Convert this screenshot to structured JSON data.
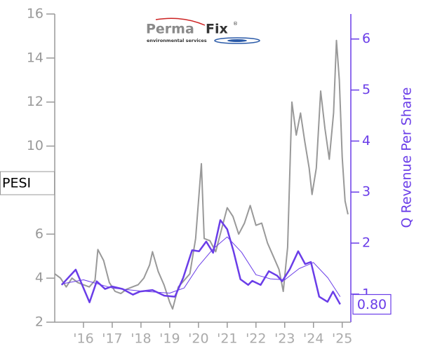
{
  "chart_data": {
    "type": "line",
    "label": "PESI",
    "logo": {
      "brand_part1": "Perma",
      "brand_part2": "Fix",
      "registered": "®",
      "tagline": "environmental services"
    },
    "y2label": "Q Revenue Per Share",
    "xlim": [
      2015.0,
      2025.3
    ],
    "xticks": [
      {
        "value": 2016,
        "label": "'16"
      },
      {
        "value": 2017,
        "label": "'17"
      },
      {
        "value": 2018,
        "label": "'18"
      },
      {
        "value": 2019,
        "label": "'19"
      },
      {
        "value": 2020,
        "label": "'20"
      },
      {
        "value": 2021,
        "label": "'21"
      },
      {
        "value": 2022,
        "label": "'22"
      },
      {
        "value": 2023,
        "label": "'23"
      },
      {
        "value": 2024,
        "label": "'24"
      },
      {
        "value": 2025,
        "label": "'25"
      }
    ],
    "ylim": [
      2,
      16
    ],
    "yticks": [
      2,
      4,
      6,
      8,
      10,
      12,
      14,
      16
    ],
    "y2lim": [
      0.45,
      6.49
    ],
    "y2ticks": [
      1,
      2,
      3,
      4,
      5,
      6
    ],
    "series": [
      {
        "color": "#999999",
        "axis": "y",
        "width": 2,
        "x": [
          2015.0,
          2015.2,
          2015.4,
          2015.6,
          2015.8,
          2016.0,
          2016.2,
          2016.4,
          2016.5,
          2016.7,
          2016.9,
          2017.1,
          2017.3,
          2017.5,
          2017.7,
          2017.9,
          2018.1,
          2018.3,
          2018.4,
          2018.6,
          2018.8,
          2019.0,
          2019.1,
          2019.3,
          2019.5,
          2019.7,
          2019.9,
          2020.0,
          2020.1,
          2020.2,
          2020.4,
          2020.6,
          2020.8,
          2021.0,
          2021.2,
          2021.4,
          2021.6,
          2021.8,
          2022.0,
          2022.2,
          2022.4,
          2022.6,
          2022.8,
          2022.95,
          2023.1,
          2023.25,
          2023.4,
          2023.55,
          2023.7,
          2023.85,
          2023.95,
          2024.1,
          2024.25,
          2024.4,
          2024.55,
          2024.7,
          2024.8,
          2024.9,
          2025.0,
          2025.1,
          2025.2
        ],
        "values": [
          4.2,
          4.0,
          3.6,
          4.0,
          3.8,
          3.7,
          3.6,
          3.9,
          5.3,
          4.8,
          3.8,
          3.4,
          3.3,
          3.5,
          3.6,
          3.7,
          4.0,
          4.6,
          5.2,
          4.3,
          3.7,
          2.9,
          2.6,
          3.6,
          3.9,
          4.2,
          5.8,
          7.5,
          9.2,
          5.8,
          5.7,
          5.2,
          6.2,
          7.2,
          6.8,
          6.0,
          6.5,
          7.3,
          6.4,
          6.5,
          5.6,
          5.0,
          4.4,
          3.4,
          5.4,
          12.0,
          10.5,
          11.5,
          10.2,
          9.0,
          7.8,
          9.0,
          12.5,
          10.8,
          9.4,
          11.5,
          14.8,
          13.0,
          9.5,
          7.5,
          6.9
        ]
      },
      {
        "color": "#6a3de8",
        "axis": "y2",
        "width": 2.5,
        "x": [
          2015.24,
          2015.73,
          2016.21,
          2016.46,
          2016.75,
          2016.99,
          2017.36,
          2017.72,
          2017.96,
          2018.4,
          2018.81,
          2019.18,
          2019.47,
          2019.78,
          2020.02,
          2020.27,
          2020.51,
          2020.76,
          2021.0,
          2021.22,
          2021.46,
          2021.73,
          2021.87,
          2022.16,
          2022.45,
          2022.74,
          2022.91,
          2023.18,
          2023.47,
          2023.71,
          2023.91,
          2024.2,
          2024.49,
          2024.68,
          2024.93
        ],
        "values": [
          1.18,
          1.48,
          0.84,
          1.25,
          1.1,
          1.15,
          1.1,
          0.99,
          1.05,
          1.08,
          0.97,
          0.95,
          1.32,
          1.86,
          1.84,
          2.03,
          1.81,
          2.45,
          2.27,
          1.84,
          1.29,
          1.18,
          1.26,
          1.18,
          1.45,
          1.36,
          1.25,
          1.49,
          1.84,
          1.59,
          1.63,
          0.95,
          0.85,
          1.05,
          0.8
        ],
        "value_labels": [
          null,
          null,
          null,
          null,
          null,
          null,
          null,
          null,
          null,
          null,
          null,
          null,
          null,
          null,
          null,
          null,
          null,
          null,
          null,
          null,
          null,
          null,
          null,
          null,
          null,
          null,
          null,
          null,
          null,
          null,
          null,
          null,
          null,
          null,
          "0.80"
        ]
      },
      {
        "color": "#6a3de8",
        "axis": "y2",
        "width": 1,
        "x": [
          2015.24,
          2016.0,
          2017.0,
          2018.0,
          2019.0,
          2019.5,
          2020.0,
          2020.5,
          2021.0,
          2021.5,
          2022.0,
          2022.5,
          2023.0,
          2023.5,
          2024.0,
          2024.5,
          2024.93
        ],
        "values": [
          1.2,
          1.28,
          1.12,
          1.06,
          1.02,
          1.12,
          1.55,
          1.88,
          2.12,
          1.82,
          1.38,
          1.3,
          1.28,
          1.5,
          1.62,
          1.32,
          0.95
        ]
      }
    ]
  }
}
